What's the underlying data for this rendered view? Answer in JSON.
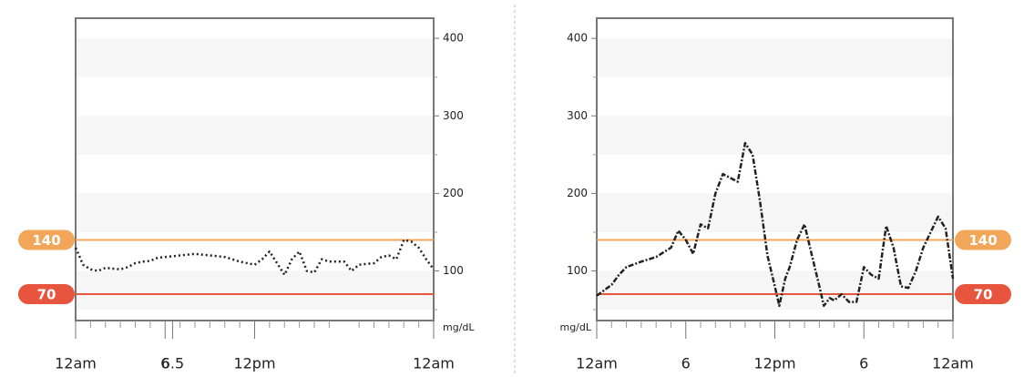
{
  "chart_data": [
    {
      "type": "line",
      "y_label": "mg/dL",
      "yaxis_side": "right",
      "x": [
        0,
        0.5,
        1,
        1.5,
        2,
        2.5,
        3,
        3.5,
        4,
        4.5,
        5,
        5.5,
        6,
        7,
        8,
        9,
        10,
        11,
        12,
        12.5,
        13,
        13.5,
        14,
        14.5,
        15,
        15.5,
        16,
        16.5,
        17,
        18,
        18.5,
        19,
        20,
        20.5,
        21,
        21.5,
        22,
        22.5,
        23,
        23.5,
        24
      ],
      "values": [
        130,
        108,
        102,
        100,
        104,
        103,
        102,
        105,
        110,
        112,
        113,
        117,
        118,
        120,
        122,
        120,
        118,
        112,
        108,
        115,
        125,
        110,
        95,
        115,
        125,
        100,
        98,
        115,
        112,
        112,
        100,
        108,
        110,
        118,
        120,
        115,
        140,
        138,
        130,
        115,
        102
      ],
      "color": "#222222",
      "xlim": [
        0,
        24
      ],
      "xticks": [
        {
          "value": 0,
          "label": "12am"
        },
        6,
        {
          "value": 12,
          "label": "12pm"
        },
        6.5,
        {
          "value": 24,
          "label": "12am"
        }
      ],
      "xminor_ticks": [
        1,
        2,
        3,
        4,
        5,
        7,
        8,
        9,
        10,
        11,
        13,
        14,
        15,
        16,
        17,
        19,
        20,
        21,
        22,
        23
      ],
      "ylim": [
        36,
        426
      ],
      "yticks": [
        100,
        200,
        300,
        400
      ],
      "yminor_ticks": [
        50,
        150,
        250,
        350
      ],
      "high": 140,
      "high_color": "#f2a65a",
      "low": 70,
      "low_color": "#e8553e"
    },
    {
      "type": "line",
      "y_label": "mg/dL",
      "yaxis_side": "left",
      "x": [
        0,
        0.5,
        1,
        1.5,
        2,
        3,
        4,
        5,
        5.5,
        6,
        6.5,
        7,
        7.5,
        8,
        8.5,
        9,
        9.5,
        10,
        10.5,
        11,
        11.5,
        12,
        12.3,
        12.7,
        13,
        13.5,
        14,
        14.5,
        15,
        15.3,
        15.7,
        16,
        16.5,
        17,
        17.5,
        18,
        18.5,
        19,
        19.5,
        20,
        20.5,
        21,
        21.5,
        22,
        23,
        23.5,
        24
      ],
      "values": [
        68,
        75,
        82,
        95,
        105,
        112,
        118,
        130,
        152,
        140,
        122,
        160,
        155,
        200,
        225,
        220,
        215,
        265,
        250,
        190,
        120,
        80,
        55,
        90,
        105,
        140,
        160,
        120,
        80,
        55,
        65,
        62,
        70,
        60,
        60,
        105,
        95,
        90,
        158,
        130,
        80,
        78,
        100,
        130,
        170,
        155,
        90
      ],
      "color": "#222222",
      "xlim": [
        0,
        24
      ],
      "xticks": [
        {
          "value": 0,
          "label": "12am"
        },
        6,
        {
          "value": 12,
          "label": "12pm"
        },
        {
          "value": 18,
          "label": "6"
        },
        {
          "value": 24,
          "label": "12am"
        }
      ],
      "xminor_ticks": [
        1,
        2,
        3,
        4,
        5,
        7,
        8,
        9,
        10,
        11,
        13,
        14,
        15,
        16,
        17,
        19,
        20,
        21,
        22,
        23
      ],
      "ylim": [
        36,
        426
      ],
      "yticks": [
        100,
        200,
        300,
        400
      ],
      "yminor_ticks": [
        50,
        150,
        250,
        350
      ],
      "high": 140,
      "high_color": "#f2a65a",
      "low": 70,
      "low_color": "#e8553e"
    }
  ]
}
